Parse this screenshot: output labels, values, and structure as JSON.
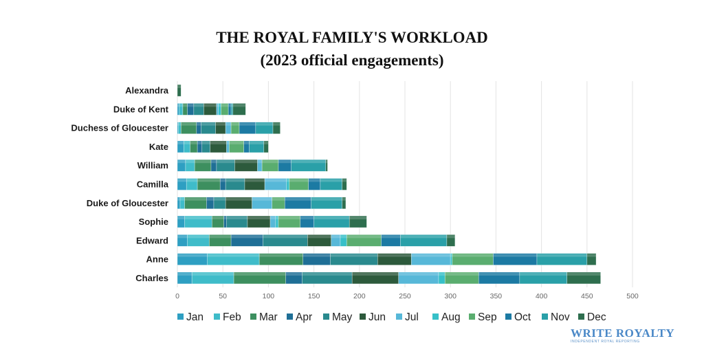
{
  "title_line_1": "THE ROYAL FAMILY'S WORKLOAD",
  "title_line_2": "(2023 official engagements)",
  "logo": {
    "name": "WRITE ROYALTY",
    "tagline": "INDEPENDENT ROYAL REPORTING"
  },
  "chart_data": {
    "type": "bar",
    "orientation": "horizontal",
    "stacked": true,
    "categories": [
      "Alexandra",
      "Duke of Kent",
      "Duchess of Gloucester",
      "Kate",
      "William",
      "Camilla",
      "Duke of Gloucester",
      "Sophie",
      "Edward",
      "Anne",
      "Charles"
    ],
    "series": [
      {
        "name": "Jan",
        "color": "#2e9fc2",
        "values": [
          0,
          2,
          1,
          7,
          9,
          10,
          3,
          8,
          11,
          33,
          16
        ]
      },
      {
        "name": "Feb",
        "color": "#3fbcc9",
        "values": [
          0,
          4,
          3,
          7,
          10,
          12,
          5,
          30,
          24,
          57,
          46
        ]
      },
      {
        "name": "Mar",
        "color": "#3d8f5f",
        "values": [
          0,
          5,
          17,
          8,
          18,
          25,
          24,
          13,
          24,
          48,
          57
        ]
      },
      {
        "name": "Apr",
        "color": "#1f6f96",
        "values": [
          0,
          7,
          5,
          5,
          6,
          6,
          8,
          3,
          35,
          30,
          18
        ]
      },
      {
        "name": "May",
        "color": "#2a8a8e",
        "values": [
          0,
          11,
          16,
          9,
          20,
          21,
          13,
          23,
          49,
          52,
          55
        ]
      },
      {
        "name": "Jun",
        "color": "#2d5a3c",
        "values": [
          0,
          14,
          11,
          18,
          25,
          22,
          29,
          25,
          26,
          37,
          51
        ]
      },
      {
        "name": "Jul",
        "color": "#57b8d8",
        "values": [
          0,
          2,
          6,
          3,
          5,
          24,
          22,
          6,
          10,
          43,
          44
        ]
      },
      {
        "name": "Aug",
        "color": "#37c0c8",
        "values": [
          0,
          3,
          0,
          0,
          0,
          3,
          0,
          3,
          7,
          2,
          7
        ]
      },
      {
        "name": "Sep",
        "color": "#5aad6f",
        "values": [
          0,
          8,
          9,
          16,
          18,
          21,
          14,
          24,
          38,
          45,
          37
        ]
      },
      {
        "name": "Oct",
        "color": "#1c7aa3",
        "values": [
          0,
          3,
          18,
          6,
          14,
          13,
          29,
          15,
          21,
          48,
          45
        ]
      },
      {
        "name": "Nov",
        "color": "#2aa0a8",
        "values": [
          0,
          2,
          19,
          16,
          38,
          24,
          34,
          39,
          51,
          55,
          52
        ]
      },
      {
        "name": "Dec",
        "color": "#2e6e4e",
        "values": [
          4,
          14,
          8,
          5,
          2,
          5,
          4,
          19,
          9,
          10,
          37
        ]
      }
    ],
    "xlim": [
      0,
      500
    ],
    "xticks": [
      0,
      50,
      100,
      150,
      200,
      250,
      300,
      350,
      400,
      450,
      500
    ],
    "grid": true,
    "legend_position": "bottom",
    "xlabel": "",
    "ylabel": ""
  }
}
